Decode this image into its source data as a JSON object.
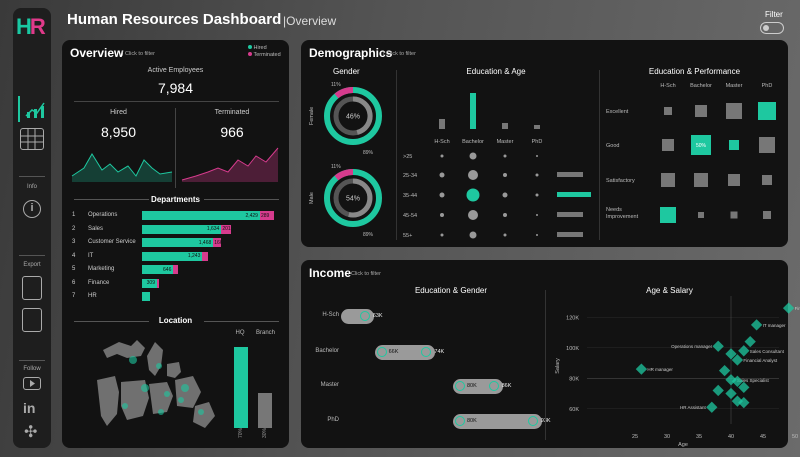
{
  "header": {
    "title": "Human Resources Dashboard",
    "subtitle": "|Overview",
    "filter_label": "Filter"
  },
  "sidebar": {
    "logo_h": "H",
    "logo_r": "R",
    "info_label": "Info",
    "export_label": "Export",
    "follow_label": "Follow"
  },
  "colors": {
    "teal": "#1ec8a0",
    "pink": "#d63b8d",
    "panel": "#121212"
  },
  "overview": {
    "title": "Overview",
    "hint": "Click to filter",
    "legend": [
      "Hired",
      "Terminated"
    ],
    "active_label": "Active Employees",
    "active_value": "7,984",
    "hired_label": "Hired",
    "hired_value": "8,950",
    "terminated_label": "Terminated",
    "terminated_value": "966",
    "departments_title": "Departments",
    "departments": [
      {
        "rank": "1",
        "name": "Operations",
        "hired": "2,429",
        "term": "289",
        "hired_n": 2429,
        "term_n": 289
      },
      {
        "rank": "2",
        "name": "Sales",
        "hired": "1,634",
        "term": "201",
        "hired_n": 1634,
        "term_n": 201
      },
      {
        "rank": "3",
        "name": "Customer Service",
        "hired": "1,468",
        "term": "166",
        "hired_n": 1468,
        "term_n": 166
      },
      {
        "rank": "4",
        "name": "IT",
        "hired": "1,243",
        "term": "",
        "hired_n": 1243,
        "term_n": 120
      },
      {
        "rank": "5",
        "name": "Marketing",
        "hired": "646",
        "term": "",
        "hired_n": 646,
        "term_n": 90
      },
      {
        "rank": "6",
        "name": "Finance",
        "hired": "309",
        "term": "",
        "hired_n": 309,
        "term_n": 40
      },
      {
        "rank": "7",
        "name": "HR",
        "hired": "",
        "term": "",
        "hired_n": 160,
        "term_n": 0
      }
    ],
    "location_title": "Location",
    "location_bars": [
      {
        "label": "HQ",
        "pct_label": "70%",
        "value": 0.7
      },
      {
        "label": "Branch",
        "pct_label": "30%",
        "value": 0.3
      }
    ]
  },
  "demographics": {
    "title": "Demographics",
    "hint": "Click to filter",
    "gender_title": "Gender",
    "gender": [
      {
        "label": "Female",
        "center": "46%",
        "outer_top": "11%",
        "outer_bottom": "89%"
      },
      {
        "label": "Male",
        "center": "54%",
        "outer_top": "11%",
        "outer_bottom": "89%"
      }
    ],
    "edu_age_title": "Education & Age",
    "edu_levels": [
      "H-Sch",
      "Bachelor",
      "Master",
      "PhD"
    ],
    "age_groups": [
      ">25",
      "25-34",
      "35-44",
      "45-54",
      "55+"
    ],
    "edu_perf_title": "Education & Performance",
    "perf_levels": [
      "Excellent",
      "Good",
      "Satisfactory",
      "Needs Improvement"
    ],
    "highlight_cell": "50%"
  },
  "income": {
    "title": "Income",
    "hint": "Click to filter",
    "edu_gender_title": "Education & Gender",
    "rows": [
      {
        "label": "H-Sch",
        "left": "",
        "right": "63K"
      },
      {
        "label": "Bachelor",
        "left": "66K",
        "right": "74K"
      },
      {
        "label": "Master",
        "left": "80K",
        "right": "86K"
      },
      {
        "label": "PhD",
        "left": "80K",
        "right": "93K"
      }
    ],
    "age_salary_title": "Age & Salary",
    "y_axis_label": "Salary",
    "x_axis_label": "Age",
    "y_ticks": [
      "120K",
      "100K",
      "80K",
      "60K"
    ],
    "x_ticks": [
      "25",
      "30",
      "35",
      "40",
      "45",
      "50"
    ],
    "points": [
      {
        "label": "Finance manager",
        "age": 49,
        "salary": 126000
      },
      {
        "label": "IT manager",
        "age": 44,
        "salary": 115000
      },
      {
        "label": "Operations manager",
        "age": 38,
        "salary": 101000
      },
      {
        "label": "Sales Consultant",
        "age": 42,
        "salary": 98000
      },
      {
        "label": "Financial Analyst",
        "age": 41,
        "salary": 92000
      },
      {
        "label": "HR manager",
        "age": 26,
        "salary": 86000
      },
      {
        "label": "Sales Specialist",
        "age": 40,
        "salary": 79000
      },
      {
        "label": "HR Assistant",
        "age": 37,
        "salary": 61000
      },
      {
        "label": "",
        "age": 39,
        "salary": 85000
      },
      {
        "label": "",
        "age": 40,
        "salary": 70000
      },
      {
        "label": "",
        "age": 41,
        "salary": 65000
      },
      {
        "label": "",
        "age": 42,
        "salary": 74000
      },
      {
        "label": "",
        "age": 43,
        "salary": 104000
      },
      {
        "label": "",
        "age": 40,
        "salary": 96000
      },
      {
        "label": "",
        "age": 42,
        "salary": 64000
      },
      {
        "label": "",
        "age": 38,
        "salary": 72000
      },
      {
        "label": "",
        "age": 41,
        "salary": 78000
      }
    ]
  }
}
